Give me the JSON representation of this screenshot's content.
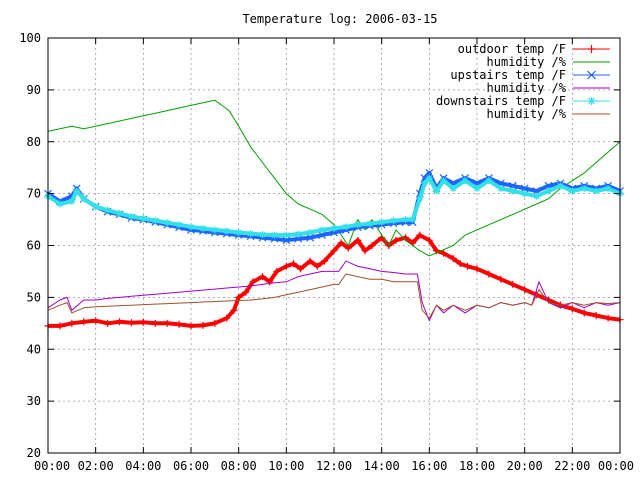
{
  "chart_data": {
    "type": "line",
    "title": "Temperature log: 2006-03-15",
    "xlabel": "",
    "ylabel": "",
    "ylim": [
      20,
      100
    ],
    "xlim": [
      0,
      24
    ],
    "grid": true,
    "legend_position": "top-right",
    "yticks": [
      20,
      30,
      40,
      50,
      60,
      70,
      80,
      90,
      100
    ],
    "xtick_values": [
      0,
      2,
      4,
      6,
      8,
      10,
      12,
      14,
      16,
      18,
      20,
      22,
      24
    ],
    "xtick_labels": [
      "00:00",
      "02:00",
      "04:00",
      "06:00",
      "08:00",
      "10:00",
      "12:00",
      "14:00",
      "16:00",
      "18:00",
      "20:00",
      "22:00",
      "00:00"
    ],
    "series": [
      {
        "name": "outdoor temp /F",
        "color": "#ff0000",
        "marker": "plus",
        "x": [
          0,
          0.5,
          1,
          1.5,
          2,
          2.5,
          3,
          3.5,
          4,
          4.5,
          5,
          5.5,
          6,
          6.5,
          7,
          7.5,
          7.8,
          8,
          8.3,
          8.6,
          9,
          9.3,
          9.6,
          10,
          10.3,
          10.6,
          11,
          11.3,
          11.6,
          12,
          12.3,
          12.6,
          13,
          13.3,
          13.6,
          14,
          14.3,
          14.6,
          15,
          15.3,
          15.6,
          16,
          16.3,
          16.6,
          17,
          17.3,
          17.6,
          18,
          18.5,
          19,
          19.5,
          20,
          20.5,
          21,
          21.5,
          22,
          22.5,
          23,
          23.5,
          24
        ],
        "y": [
          44.5,
          44.5,
          45,
          45.3,
          45.5,
          45,
          45.3,
          45.1,
          45.2,
          45,
          45,
          44.8,
          44.5,
          44.6,
          45,
          46,
          47.5,
          50,
          51,
          53,
          54,
          53,
          55,
          56,
          56.5,
          55.5,
          57,
          56,
          57,
          59,
          60.5,
          59.5,
          61,
          59,
          60,
          61.5,
          60,
          61,
          61.5,
          60.5,
          62,
          61,
          59,
          58.5,
          57.5,
          56.5,
          56,
          55.5,
          54.5,
          53.5,
          52.5,
          51.5,
          50.5,
          49.5,
          48.5,
          47.8,
          47,
          46.5,
          46,
          45.7
        ]
      },
      {
        "name": "humidity /%",
        "color": "#00a000",
        "marker": "none",
        "x": [
          0,
          0.5,
          1,
          1.5,
          2,
          2.5,
          3,
          3.5,
          4,
          4.5,
          5,
          5.5,
          6,
          6.5,
          7,
          7.3,
          7.6,
          8,
          8.5,
          9,
          9.5,
          10,
          10.5,
          11,
          11.5,
          12,
          12.3,
          12.6,
          13,
          13.3,
          13.6,
          14,
          14.3,
          14.6,
          15,
          15.3,
          15.6,
          16,
          16.5,
          17,
          17.5,
          18,
          18.5,
          19,
          19.5,
          20,
          20.5,
          21,
          21.5,
          22,
          22.5,
          23,
          23.5,
          24
        ],
        "y": [
          82,
          82.5,
          83,
          82.5,
          83,
          83.5,
          84,
          84.5,
          85,
          85.5,
          86,
          86.5,
          87,
          87.5,
          88,
          87,
          86,
          83,
          79,
          76,
          73,
          70,
          68,
          67,
          66,
          64,
          62,
          60,
          65,
          63,
          65,
          62,
          60,
          63,
          61,
          60,
          59,
          58,
          59,
          60,
          62,
          63,
          64,
          65,
          66,
          67,
          68,
          69,
          71,
          72.5,
          74,
          76,
          78,
          80
        ]
      },
      {
        "name": "upstairs temp /F",
        "color": "#1e64ff",
        "marker": "x",
        "x": [
          0,
          0.5,
          1,
          1.2,
          1.5,
          2,
          2.5,
          3,
          3.5,
          4,
          4.5,
          5,
          5.5,
          6,
          6.5,
          7,
          7.5,
          8,
          8.5,
          9,
          9.5,
          10,
          10.5,
          11,
          11.5,
          12,
          12.5,
          13,
          13.5,
          14,
          14.5,
          15,
          15.3,
          15.6,
          15.8,
          16,
          16.3,
          16.6,
          17,
          17.5,
          18,
          18.5,
          19,
          19.5,
          20,
          20.5,
          21,
          21.5,
          22,
          22.5,
          23,
          23.5,
          24
        ],
        "y": [
          70,
          68.5,
          69.5,
          71,
          69,
          67.5,
          66.5,
          66,
          65.3,
          65,
          64.5,
          64,
          63.5,
          63,
          62.8,
          62.5,
          62.3,
          62,
          61.8,
          61.5,
          61.3,
          61,
          61.3,
          61.5,
          62,
          62.5,
          63,
          63.5,
          63.8,
          64,
          64.3,
          64.5,
          64.5,
          70,
          73,
          74,
          71,
          73,
          72,
          73,
          72,
          73,
          72,
          71.5,
          71,
          70.5,
          71.5,
          72,
          71,
          71.5,
          71,
          71.5,
          70.5
        ]
      },
      {
        "name": "humidity /%",
        "color": "#a000d0",
        "marker": "none",
        "x": [
          0,
          0.5,
          0.8,
          1,
          1.5,
          2,
          2.5,
          3,
          3.5,
          4,
          4.5,
          5,
          5.5,
          6,
          6.5,
          7,
          7.5,
          8,
          8.5,
          9,
          9.5,
          10,
          10.5,
          11,
          11.5,
          12,
          12.2,
          12.5,
          13,
          13.5,
          14,
          14.5,
          15,
          15.5,
          15.7,
          16,
          16.3,
          16.6,
          17,
          17.5,
          18,
          18.5,
          19,
          19.5,
          20,
          20.3,
          20.6,
          21,
          21.5,
          22,
          22.5,
          23,
          23.5,
          24
        ],
        "y": [
          48,
          49.5,
          50,
          47.5,
          49.5,
          49.5,
          49.8,
          50,
          50.2,
          50.4,
          50.6,
          50.8,
          51,
          51.2,
          51.4,
          51.6,
          51.8,
          52,
          52.2,
          52.5,
          52.8,
          53,
          54,
          54.5,
          55,
          55,
          55,
          57,
          56,
          55.5,
          55,
          54.8,
          54.5,
          54.5,
          49,
          45.5,
          48.5,
          47,
          48.5,
          47,
          48.5,
          48,
          49,
          48.5,
          49,
          48.5,
          53,
          49,
          48,
          49,
          48,
          49,
          48.5,
          49
        ]
      },
      {
        "name": "downstairs temp /F",
        "color": "#33e0e8",
        "marker": "star",
        "x": [
          0,
          0.5,
          1,
          1.2,
          1.5,
          2,
          2.5,
          3,
          3.5,
          4,
          4.5,
          5,
          5.5,
          6,
          6.5,
          7,
          7.5,
          8,
          8.5,
          9,
          9.5,
          10,
          10.5,
          11,
          11.5,
          12,
          12.5,
          13,
          13.5,
          14,
          14.5,
          15,
          15.3,
          15.6,
          15.8,
          16,
          16.3,
          16.6,
          17,
          17.5,
          18,
          18.5,
          19,
          19.5,
          20,
          20.5,
          21,
          21.5,
          22,
          22.5,
          23,
          23.5,
          24
        ],
        "y": [
          69.5,
          68,
          68.5,
          70.5,
          69,
          67.5,
          66.8,
          66.2,
          65.6,
          65.2,
          64.8,
          64.4,
          64,
          63.6,
          63.3,
          63,
          62.8,
          62.5,
          62.3,
          62.1,
          62,
          62,
          62.2,
          62.5,
          63,
          63.3,
          63.6,
          64,
          64.2,
          64.5,
          64.8,
          65,
          65,
          69,
          72,
          73,
          70.5,
          72.5,
          71,
          72.5,
          71,
          72.5,
          71,
          70.5,
          70,
          69.5,
          70.5,
          71.5,
          70.5,
          71,
          70.5,
          71,
          70
        ]
      },
      {
        "name": "humidity /%",
        "color": "#a0522d",
        "marker": "none",
        "x": [
          0,
          0.5,
          0.8,
          1,
          1.5,
          2,
          2.5,
          3,
          3.5,
          4,
          4.5,
          5,
          5.5,
          6,
          6.5,
          7,
          7.5,
          8,
          8.5,
          9,
          9.5,
          10,
          10.5,
          11,
          11.5,
          12,
          12.2,
          12.5,
          13,
          13.5,
          14,
          14.5,
          15,
          15.5,
          15.7,
          16,
          16.3,
          16.6,
          17,
          17.5,
          18,
          18.5,
          19,
          19.5,
          20,
          20.3,
          20.6,
          21,
          21.5,
          22,
          22.5,
          23,
          23.5,
          24
        ],
        "y": [
          47.5,
          48.5,
          49,
          47,
          48,
          48.2,
          48.3,
          48.4,
          48.5,
          48.6,
          48.7,
          48.8,
          48.9,
          49,
          49.1,
          49.2,
          49.3,
          49.4,
          49.5,
          49.7,
          50,
          50.5,
          51,
          51.5,
          52,
          52.5,
          52.5,
          54.5,
          54,
          53.5,
          53.5,
          53,
          53,
          53,
          47.5,
          46,
          48.5,
          47.5,
          48.5,
          47.5,
          48.5,
          48,
          49,
          48.5,
          49,
          48.5,
          51.5,
          49,
          48.5,
          49,
          48.5,
          49,
          48.8,
          49
        ]
      }
    ]
  }
}
